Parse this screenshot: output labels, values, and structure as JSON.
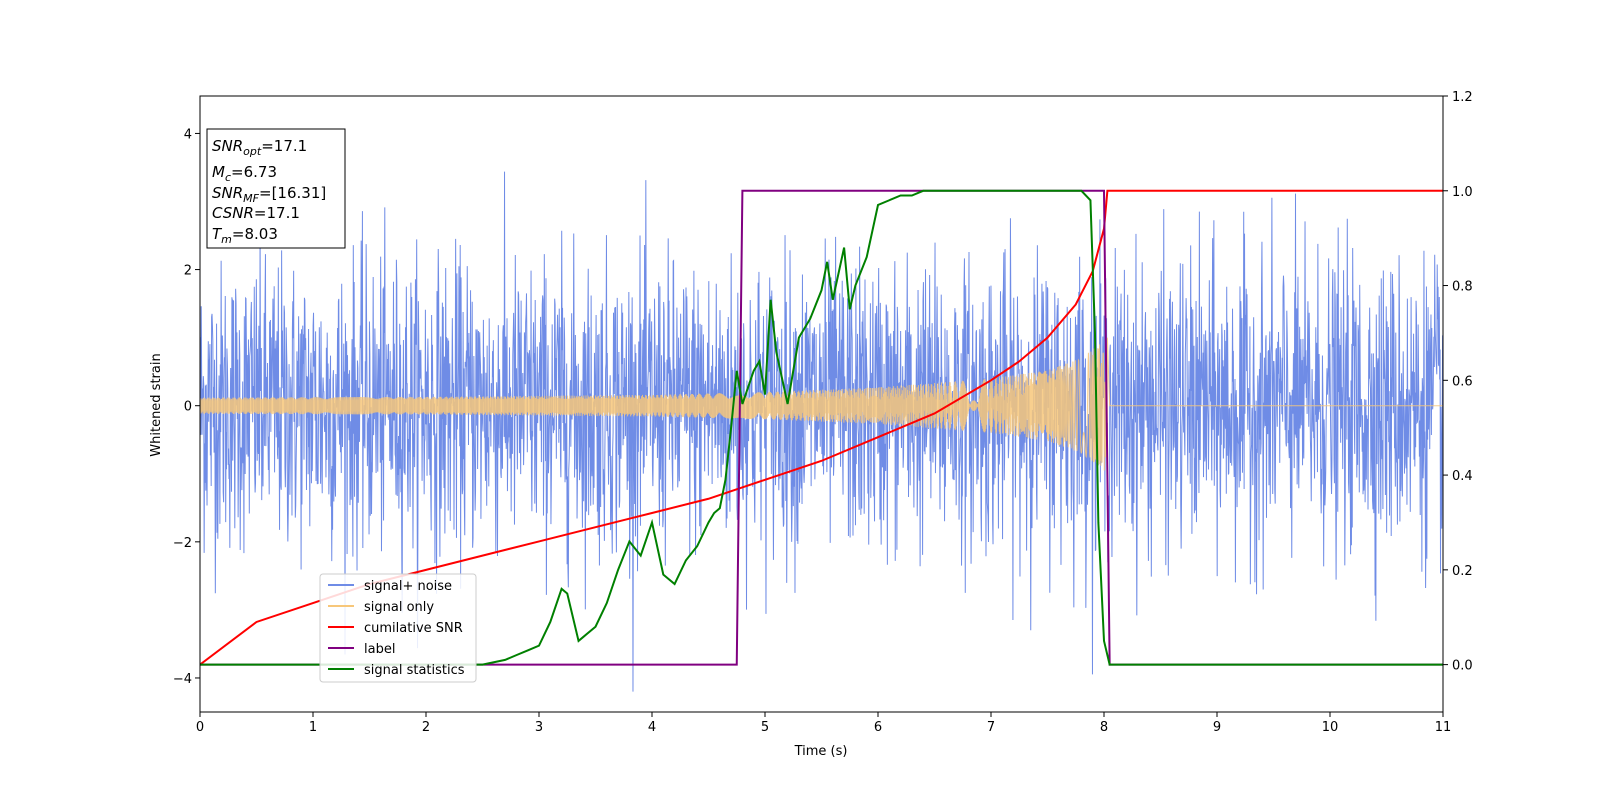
{
  "chart_data": {
    "type": "line",
    "xlabel": "Time (s)",
    "ylabel": "Whitened strain",
    "xlim": [
      0,
      11
    ],
    "ylim": [
      -4.5,
      4.55
    ],
    "y2lim": [
      -0.1,
      1.2
    ],
    "xticks": [
      "0",
      "1",
      "2",
      "3",
      "4",
      "5",
      "6",
      "7",
      "8",
      "9",
      "10",
      "11"
    ],
    "yticks": [
      "−4",
      "−2",
      "0",
      "2",
      "4"
    ],
    "y2ticks": [
      "0.0",
      "0.2",
      "0.4",
      "0.6",
      "0.8",
      "1.0",
      "1.2"
    ],
    "noise_max_abs": 4.2,
    "stats_box": {
      "snr_opt": {
        "name": "SNR",
        "sub": "opt",
        "value": "=17.1"
      },
      "mc": {
        "name": "M",
        "sub": "c",
        "value": "=6.73"
      },
      "snr_mf": {
        "name": "SNR",
        "sub": "MF",
        "value": "=[16.31]"
      },
      "csnr": {
        "name": "CSNR",
        "value": "=17.1"
      },
      "tm": {
        "name": "T",
        "sub": "m",
        "value": "=8.03"
      }
    },
    "legend": {
      "position": "lower-left",
      "entries": [
        "signal+ noise",
        "signal only",
        "cumilative SNR",
        "label",
        "signal statistics"
      ]
    },
    "colors": {
      "noise": "#6f8ce6",
      "signal_only": "#f7c77a",
      "cumulative_snr": "#ff0000",
      "label": "#800080",
      "statistics": "#008000"
    },
    "series": [
      {
        "name": "cumilative SNR",
        "axis": "right",
        "x": [
          0,
          0.5,
          1,
          1.5,
          2,
          2.5,
          3,
          3.5,
          4,
          4.5,
          5,
          5.5,
          6,
          6.5,
          7,
          7.25,
          7.5,
          7.75,
          7.9,
          8.0,
          8.03,
          11
        ],
        "y": [
          0.0,
          0.09,
          0.13,
          0.17,
          0.2,
          0.23,
          0.26,
          0.29,
          0.32,
          0.35,
          0.39,
          0.43,
          0.48,
          0.53,
          0.6,
          0.64,
          0.69,
          0.76,
          0.83,
          0.92,
          1.0,
          1.0
        ]
      },
      {
        "name": "label",
        "axis": "right",
        "x": [
          0,
          4.75,
          4.8,
          8.0,
          8.05,
          11
        ],
        "y": [
          0,
          0,
          1,
          1,
          0,
          0
        ]
      },
      {
        "name": "signal statistics",
        "axis": "right",
        "x": [
          0,
          2.5,
          2.7,
          2.8,
          2.9,
          3.0,
          3.1,
          3.2,
          3.25,
          3.35,
          3.4,
          3.5,
          3.6,
          3.7,
          3.8,
          3.9,
          4.0,
          4.1,
          4.2,
          4.3,
          4.4,
          4.5,
          4.55,
          4.6,
          4.65,
          4.7,
          4.75,
          4.8,
          4.9,
          4.95,
          5.0,
          5.05,
          5.1,
          5.2,
          5.3,
          5.4,
          5.5,
          5.55,
          5.6,
          5.7,
          5.75,
          5.8,
          5.9,
          6.0,
          6.1,
          6.2,
          6.3,
          6.4,
          6.6,
          6.8,
          7.0,
          7.2,
          7.4,
          7.6,
          7.8,
          7.88,
          7.92,
          7.95,
          8.0,
          8.05,
          8.1,
          11
        ],
        "y": [
          0.0,
          0.0,
          0.01,
          0.02,
          0.03,
          0.04,
          0.09,
          0.16,
          0.15,
          0.05,
          0.06,
          0.08,
          0.13,
          0.2,
          0.26,
          0.23,
          0.3,
          0.19,
          0.17,
          0.22,
          0.25,
          0.3,
          0.32,
          0.33,
          0.39,
          0.5,
          0.62,
          0.55,
          0.62,
          0.64,
          0.57,
          0.77,
          0.66,
          0.55,
          0.69,
          0.73,
          0.79,
          0.85,
          0.77,
          0.88,
          0.75,
          0.8,
          0.86,
          0.97,
          0.98,
          0.99,
          0.99,
          1.0,
          1.0,
          1.0,
          1.0,
          1.0,
          1.0,
          1.0,
          1.0,
          0.98,
          0.7,
          0.3,
          0.05,
          0.0,
          0.0,
          0.0
        ]
      },
      {
        "name": "signal only",
        "axis": "left",
        "envelope_x": [
          0,
          2,
          4,
          5,
          6,
          7,
          7.5,
          7.8,
          8.0,
          8.03,
          8.05,
          11
        ],
        "envelope_y": [
          0.12,
          0.13,
          0.16,
          0.2,
          0.27,
          0.4,
          0.52,
          0.7,
          0.95,
          1.0,
          0.0,
          0.0
        ]
      }
    ]
  }
}
